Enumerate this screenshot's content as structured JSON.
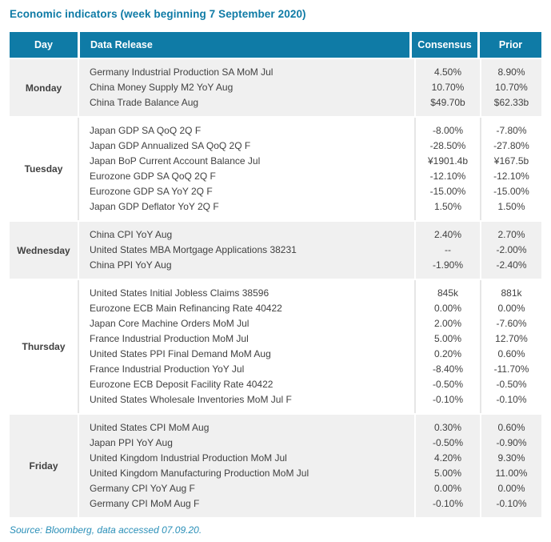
{
  "title": "Economic indicators (week beginning 7 September 2020)",
  "colors": {
    "accent_teal": "#0f7ba6",
    "header_text": "#ffffff",
    "body_text": "#414141",
    "shaded_row_bg": "#f0f0f0",
    "source_text": "#2a8fb8"
  },
  "table": {
    "headers": {
      "day": "Day",
      "data_release": "Data Release",
      "consensus": "Consensus",
      "prior": "Prior"
    },
    "groups": [
      {
        "day": "Monday",
        "rows": [
          {
            "release": "Germany Industrial Production SA MoM Jul",
            "consensus": "4.50%",
            "prior": "8.90%"
          },
          {
            "release": "China Money Supply M2 YoY Aug",
            "consensus": "10.70%",
            "prior": "10.70%"
          },
          {
            "release": "China Trade Balance Aug",
            "consensus": "$49.70b",
            "prior": "$62.33b"
          }
        ]
      },
      {
        "day": "Tuesday",
        "rows": [
          {
            "release": "Japan GDP SA QoQ 2Q F",
            "consensus": "-8.00%",
            "prior": "-7.80%"
          },
          {
            "release": "Japan GDP Annualized SA QoQ 2Q F",
            "consensus": "-28.50%",
            "prior": "-27.80%"
          },
          {
            "release": "Japan BoP Current Account Balance Jul",
            "consensus": "¥1901.4b",
            "prior": "¥167.5b"
          },
          {
            "release": "Eurozone GDP SA QoQ 2Q F",
            "consensus": "-12.10%",
            "prior": "-12.10%"
          },
          {
            "release": "Eurozone GDP SA YoY 2Q F",
            "consensus": "-15.00%",
            "prior": "-15.00%"
          },
          {
            "release": "Japan GDP Deflator YoY 2Q F",
            "consensus": "1.50%",
            "prior": "1.50%"
          }
        ]
      },
      {
        "day": "Wednesday",
        "rows": [
          {
            "release": "China CPI YoY Aug",
            "consensus": "2.40%",
            "prior": "2.70%"
          },
          {
            "release": "United States MBA Mortgage Applications 38231",
            "consensus": "--",
            "prior": "-2.00%"
          },
          {
            "release": "China PPI YoY Aug",
            "consensus": "-1.90%",
            "prior": "-2.40%"
          }
        ]
      },
      {
        "day": "Thursday",
        "rows": [
          {
            "release": "United States Initial Jobless Claims 38596",
            "consensus": "845k",
            "prior": "881k"
          },
          {
            "release": "Eurozone ECB Main Refinancing Rate 40422",
            "consensus": "0.00%",
            "prior": "0.00%"
          },
          {
            "release": "Japan Core Machine Orders MoM Jul",
            "consensus": "2.00%",
            "prior": "-7.60%"
          },
          {
            "release": "France Industrial Production MoM Jul",
            "consensus": "5.00%",
            "prior": "12.70%"
          },
          {
            "release": "United States PPI Final Demand MoM Aug",
            "consensus": "0.20%",
            "prior": "0.60%"
          },
          {
            "release": "France Industrial Production YoY Jul",
            "consensus": "-8.40%",
            "prior": "-11.70%"
          },
          {
            "release": "Eurozone ECB Deposit Facility Rate 40422",
            "consensus": "-0.50%",
            "prior": "-0.50%"
          },
          {
            "release": "United States Wholesale Inventories MoM Jul F",
            "consensus": "-0.10%",
            "prior": "-0.10%"
          }
        ]
      },
      {
        "day": "Friday",
        "rows": [
          {
            "release": "United States CPI MoM Aug",
            "consensus": "0.30%",
            "prior": "0.60%"
          },
          {
            "release": "Japan PPI YoY Aug",
            "consensus": "-0.50%",
            "prior": "-0.90%"
          },
          {
            "release": "United Kingdom Industrial Production MoM Jul",
            "consensus": "4.20%",
            "prior": "9.30%"
          },
          {
            "release": "United Kingdom Manufacturing Production MoM Jul",
            "consensus": "5.00%",
            "prior": "11.00%"
          },
          {
            "release": "Germany CPI YoY Aug F",
            "consensus": "0.00%",
            "prior": "0.00%"
          },
          {
            "release": "Germany CPI MoM Aug F",
            "consensus": "-0.10%",
            "prior": "-0.10%"
          }
        ]
      }
    ]
  },
  "footer": {
    "source": "Source: Bloomberg, data accessed 07.09.20."
  }
}
